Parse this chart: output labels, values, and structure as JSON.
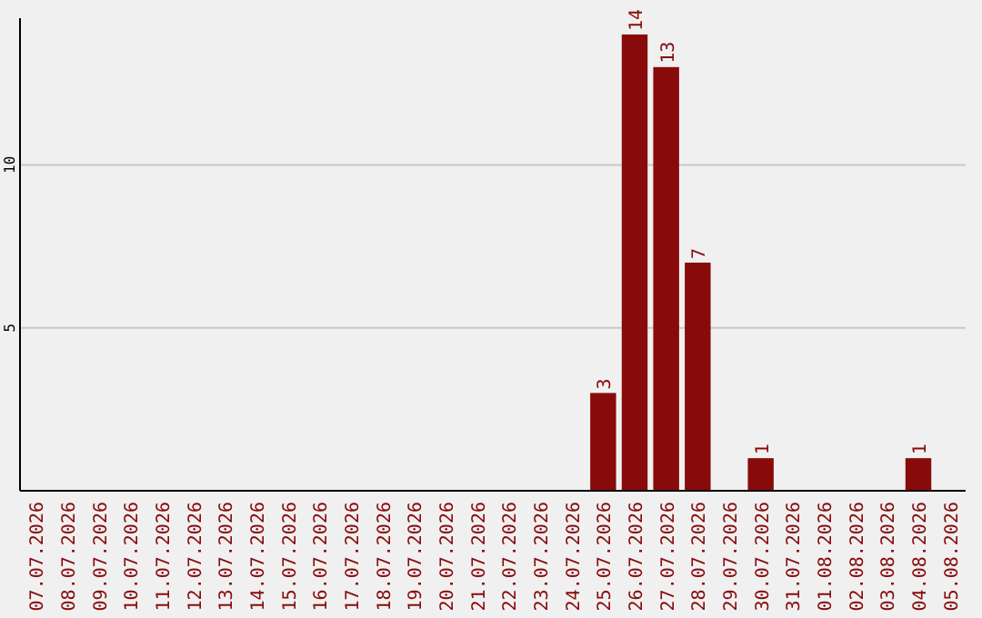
{
  "chart_data": {
    "type": "bar",
    "categories": [
      "07.07.2026",
      "08.07.2026",
      "09.07.2026",
      "10.07.2026",
      "11.07.2026",
      "12.07.2026",
      "13.07.2026",
      "14.07.2026",
      "15.07.2026",
      "16.07.2026",
      "17.07.2026",
      "18.07.2026",
      "19.07.2026",
      "20.07.2026",
      "21.07.2026",
      "22.07.2026",
      "23.07.2026",
      "24.07.2026",
      "25.07.2026",
      "26.07.2026",
      "27.07.2026",
      "28.07.2026",
      "29.07.2026",
      "30.07.2026",
      "31.07.2026",
      "01.08.2026",
      "02.08.2026",
      "03.08.2026",
      "04.08.2026",
      "05.08.2026"
    ],
    "values": [
      0,
      0,
      0,
      0,
      0,
      0,
      0,
      0,
      0,
      0,
      0,
      0,
      0,
      0,
      0,
      0,
      0,
      0,
      3,
      14,
      13,
      7,
      0,
      1,
      0,
      0,
      0,
      0,
      1,
      0
    ],
    "value_labels": [
      null,
      null,
      null,
      null,
      null,
      null,
      null,
      null,
      null,
      null,
      null,
      null,
      null,
      null,
      null,
      null,
      null,
      null,
      "3",
      "14",
      "13",
      "7",
      null,
      "1",
      null,
      null,
      null,
      null,
      "1",
      null
    ],
    "color": "#880a0b",
    "ylim": [
      0,
      14.5
    ],
    "yticks": [
      5,
      10
    ],
    "grid": "y"
  }
}
